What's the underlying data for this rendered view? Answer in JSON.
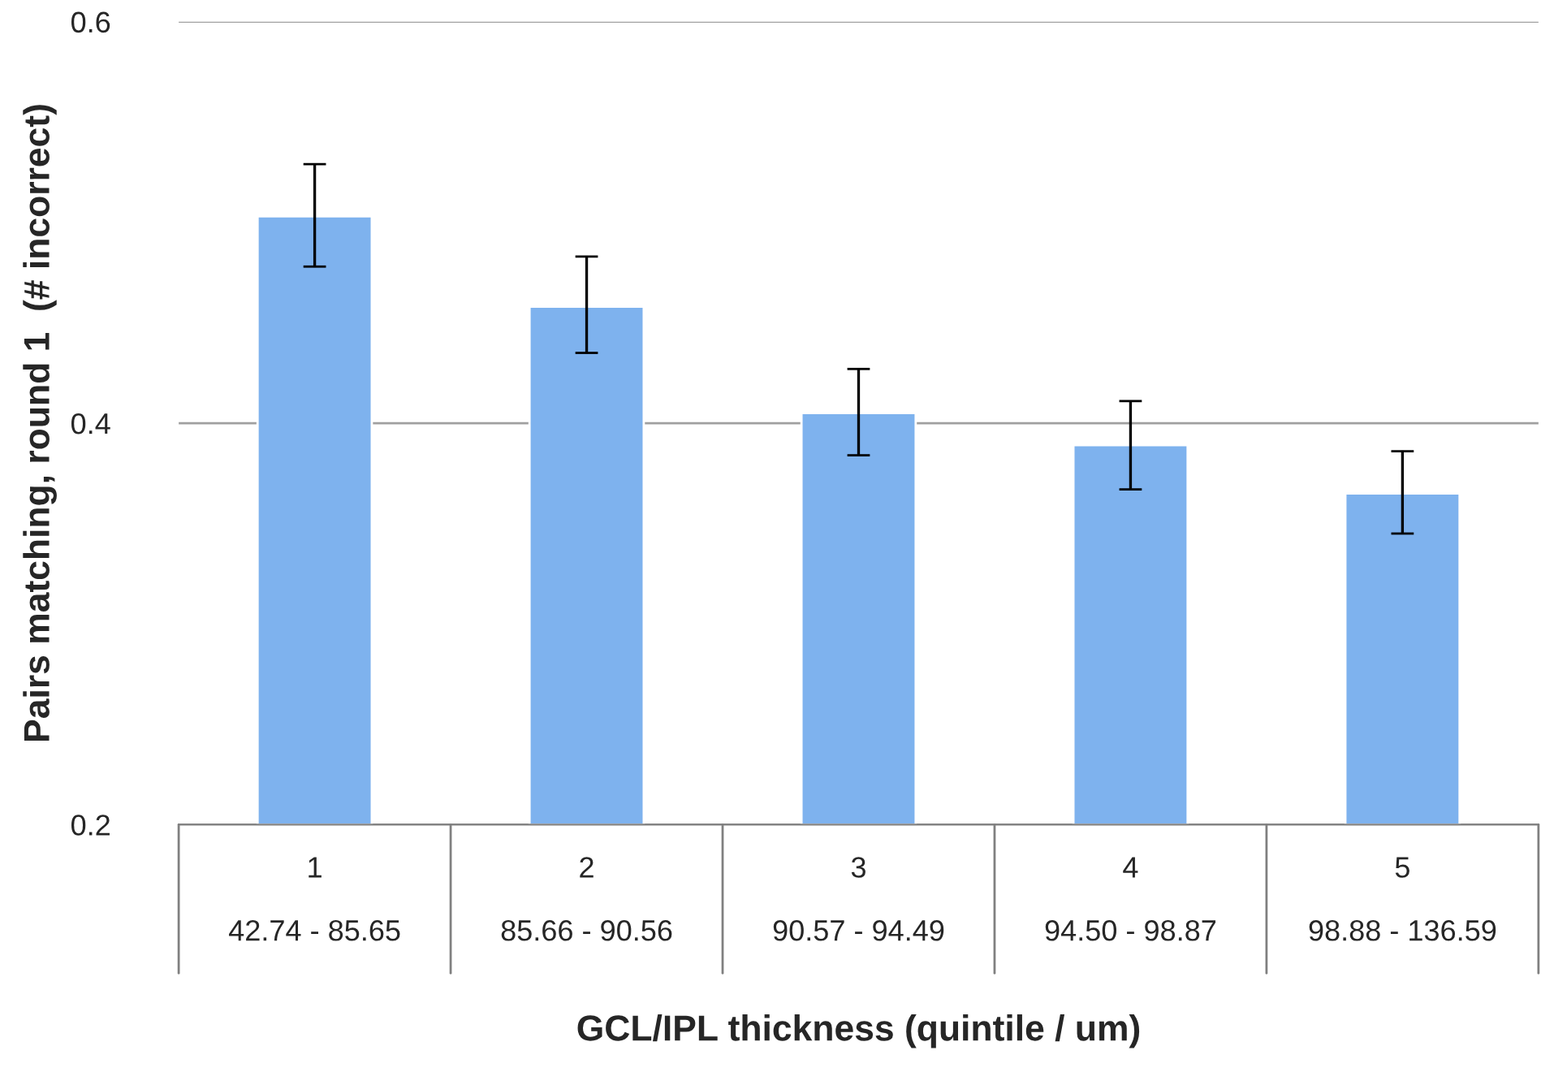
{
  "chart_data": {
    "type": "bar",
    "xlabel": "GCL/IPL thickness (quintile / um)",
    "ylabel": "Pairs matching, round 1  (# incorrect)",
    "categories": [
      "1\n\n42.74 - 85.65",
      "2\n\n85.66 - 90.56",
      "3\n\n90.57 - 94.49",
      "4\n\n94.50 - 98.87",
      "5\n\n98.88 - 136.59"
    ],
    "values": [
      0.503,
      0.458,
      0.405,
      0.389,
      0.365
    ],
    "errors": [
      [
        0.478,
        0.529
      ],
      [
        0.435,
        0.483
      ],
      [
        0.384,
        0.427
      ],
      [
        0.367,
        0.411
      ],
      [
        0.345,
        0.386
      ]
    ],
    "color": "#7eb2ee",
    "ylim": [
      0.2,
      0.6
    ],
    "yticks": [
      0.2,
      0.4,
      0.6
    ],
    "grid": "y"
  }
}
